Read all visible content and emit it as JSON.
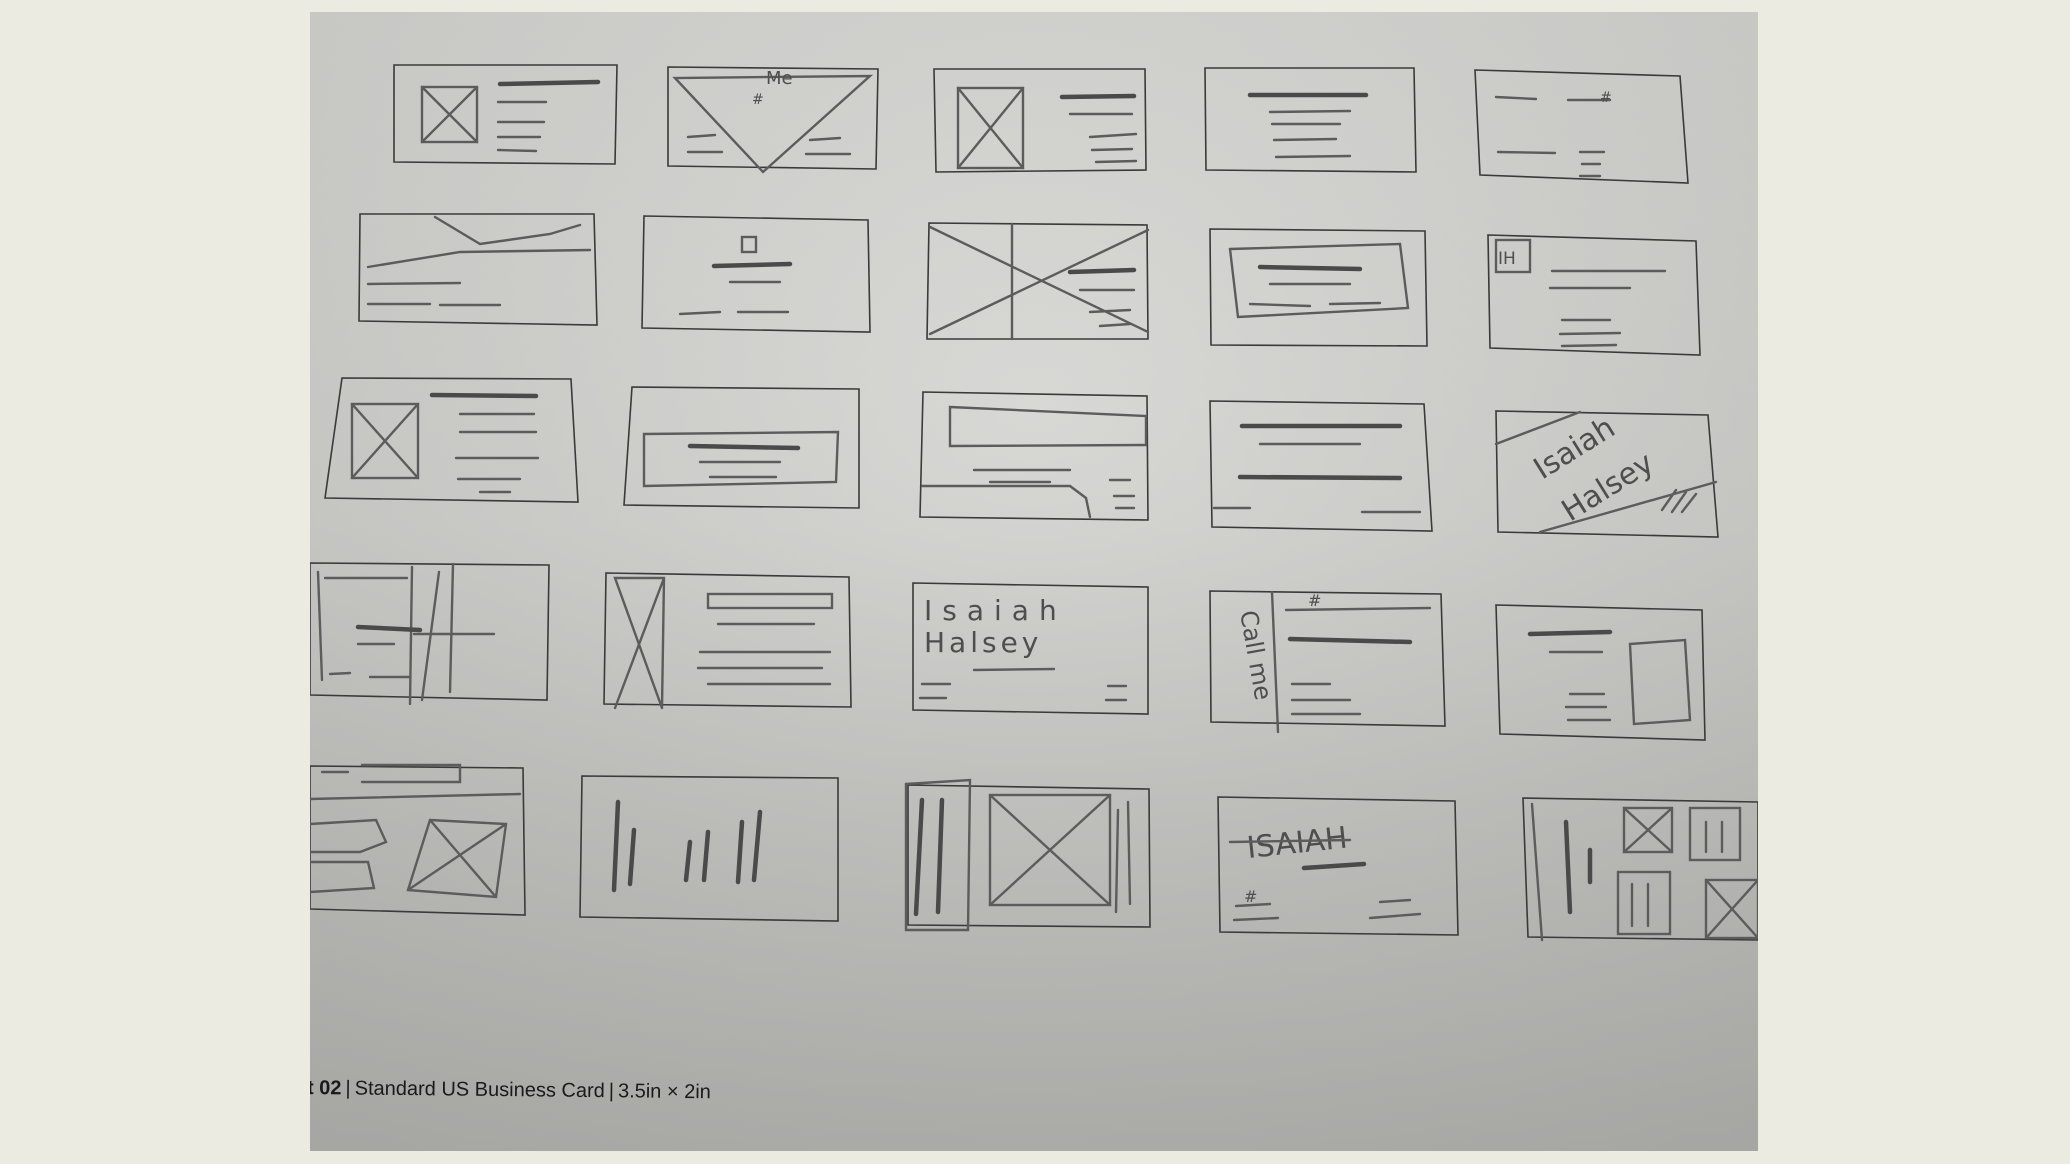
{
  "photo": {
    "caption": {
      "sheet_number": "t 02",
      "card_type": "Standard US Business Card",
      "card_size": "3.5in × 2in"
    },
    "handwriting": {
      "top_label": "Me",
      "hash_mark": "#",
      "monogram": "IH",
      "name_first": "Isaiah",
      "name_last": "Halsey",
      "call_me": "Call me",
      "name_caps": "ISAIAH"
    }
  }
}
